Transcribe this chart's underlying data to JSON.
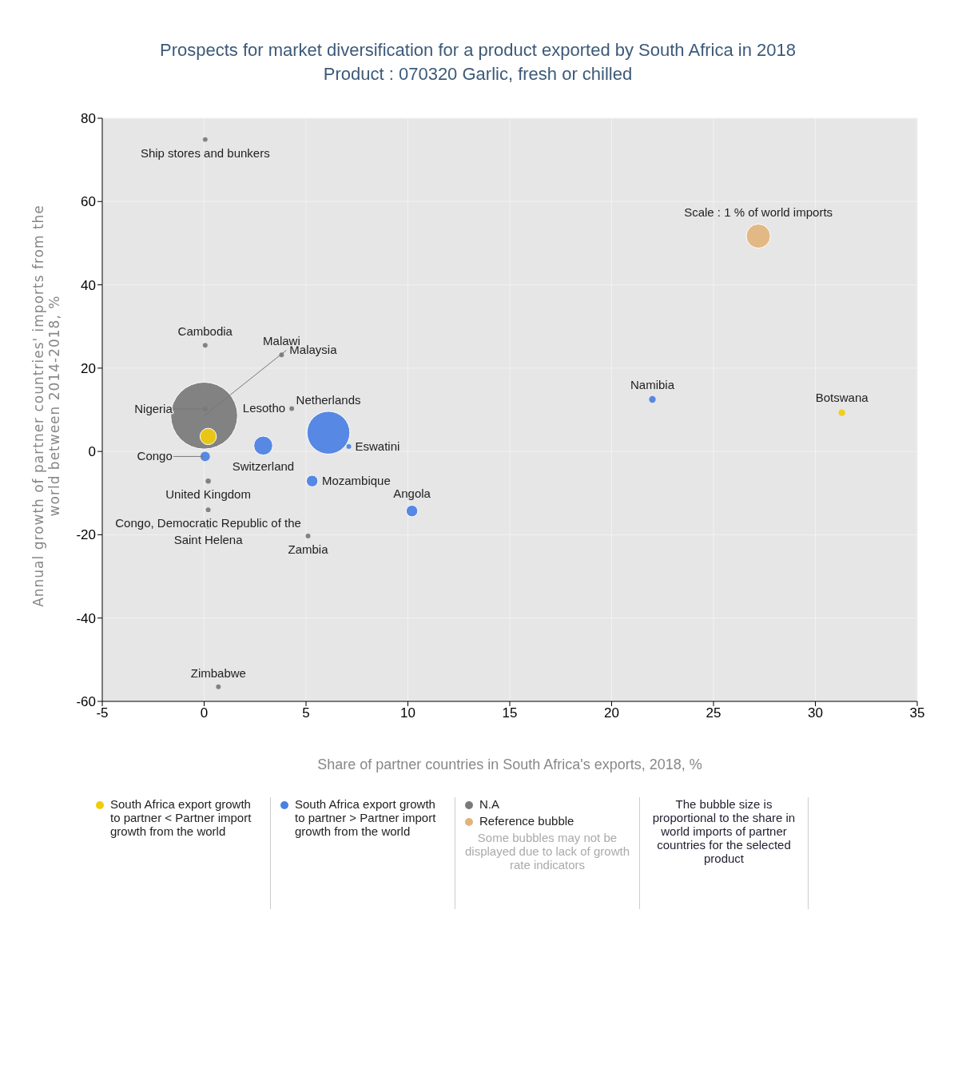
{
  "chart_data": {
    "type": "bubble",
    "title": "Prospects for market diversification for a product exported by South Africa in 2018",
    "subtitle": "Product : 070320 Garlic, fresh or chilled",
    "xlabel": "Share of partner countries in South Africa's exports, 2018, %",
    "ylabel": "Annual growth of partner countries' imports from the world between 2014-2018, %",
    "xlim": [
      -5,
      35
    ],
    "xticks": [
      -5,
      0,
      5,
      10,
      15,
      20,
      25,
      30,
      35
    ],
    "ylim": [
      -60,
      80
    ],
    "yticks": [
      -60,
      -40,
      -20,
      0,
      20,
      40,
      60,
      80
    ],
    "grid": true,
    "legend": "bottom",
    "series": [
      {
        "name": "South Africa export growth to partner < Partner import growth from the world",
        "color": "#f2cc0c",
        "x": [
          31.3,
          0.2
        ],
        "values": [
          9.3,
          3.6
        ],
        "sizes": [
          0.01,
          0.06
        ]
      },
      {
        "name": "South Africa export growth to partner > Partner import growth from the world",
        "color": "#4a80e4",
        "x": [
          6.1,
          2.9,
          5.3,
          7.1,
          10.2,
          22.0,
          0.05
        ],
        "values": [
          4.5,
          1.4,
          -7.1,
          1.2,
          -14.3,
          12.5,
          -1.2
        ],
        "sizes": [
          0.41,
          0.08,
          0.03,
          0.005,
          0.03,
          0.01,
          0.02
        ]
      },
      {
        "name": "N.A",
        "color": "#7a7a7a",
        "x": [
          0.0,
          0.05,
          0.05,
          3.8,
          0.05,
          4.3,
          0.2,
          0.2,
          0.2,
          5.1,
          0.7
        ],
        "values": [
          8.6,
          10.2,
          25.5,
          23.2,
          74.9,
          10.3,
          -7.1,
          -14,
          -18,
          -20.3,
          -56.5
        ],
        "sizes": [
          1,
          0.006,
          0.005,
          0.005,
          0.005,
          0.005,
          0.006,
          0.005,
          0.005,
          0.005,
          0.005
        ]
      },
      {
        "name": "Reference bubble",
        "color": "#e2b47c",
        "x": [
          27.2
        ],
        "values": [
          51.7
        ],
        "sizes": [
          0.13
        ]
      }
    ],
    "annotations": [
      {
        "text": "Scale : 1 % of world imports",
        "x": 27.2,
        "y": 51.7
      },
      {
        "text": "Botswana",
        "x": 31.3,
        "y": 9.3
      },
      {
        "text": "Netherlands",
        "x": 6.1,
        "y": 4.5
      },
      {
        "text": "Switzerland",
        "x": 2.9,
        "y": 1.4
      },
      {
        "text": "Mozambique",
        "x": 5.3,
        "y": -7.1
      },
      {
        "text": "Eswatini",
        "x": 7.1,
        "y": 1.2
      },
      {
        "text": "Angola",
        "x": 10.2,
        "y": -14.3
      },
      {
        "text": "Namibia",
        "x": 22.0,
        "y": 12.5
      },
      {
        "text": "Congo",
        "x": 0.05,
        "y": -1.2
      },
      {
        "text": "Malaysia",
        "x": 0.0,
        "y": 8.6
      },
      {
        "text": "Nigeria",
        "x": 0.05,
        "y": 10.2
      },
      {
        "text": "Cambodia",
        "x": 0.05,
        "y": 25.5
      },
      {
        "text": "Malawi",
        "x": 3.8,
        "y": 23.2
      },
      {
        "text": "Ship stores and bunkers",
        "x": 0.05,
        "y": 74.9
      },
      {
        "text": "Lesotho",
        "x": 4.3,
        "y": 10.3
      },
      {
        "text": "United Kingdom",
        "x": 0.2,
        "y": -7.1
      },
      {
        "text": "Congo, Democratic Republic of the",
        "x": 0.2,
        "y": -14
      },
      {
        "text": "Saint Helena",
        "x": 0.2,
        "y": -18
      },
      {
        "text": "Zambia",
        "x": 5.1,
        "y": -20.3
      },
      {
        "text": "Zimbabwe",
        "x": 0.7,
        "y": -56.5
      },
      "Some bubbles may not be displayed due to lack of growth rate indicators",
      "The bubble size is proportional to the share in world imports of partner countries for the selected product"
    ]
  }
}
